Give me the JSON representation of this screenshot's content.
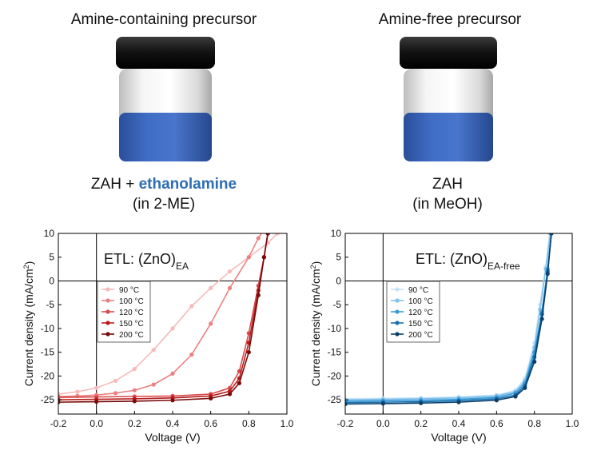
{
  "header": {
    "left_title": "Amine-containing precursor",
    "right_title": "Amine-free precursor",
    "left_formula_prefix": "ZAH + ",
    "left_formula_highlight": "ethanolamine",
    "left_solvent": "(in 2-ME)",
    "right_formula": "ZAH",
    "right_solvent": "(in MeOH)"
  },
  "colors": {
    "highlight": "#2e6db4",
    "vial_cap": "#1a1a1a",
    "vial_liquid": "#3a63b8"
  },
  "chart_data": [
    {
      "type": "line",
      "etl_base": "ETL: (ZnO)",
      "etl_sub": "EA",
      "xlabel": "Voltage (V)",
      "ylabel": "Current density (mA/cm",
      "ylabel_sup": "2",
      "ylabel_end": ")",
      "xlim": [
        -0.2,
        1.0
      ],
      "ylim": [
        -28,
        10
      ],
      "xticks": [
        "-0.2",
        "0.0",
        "0.2",
        "0.4",
        "0.6",
        "0.8",
        "1.0"
      ],
      "yticks": [
        "10",
        "5",
        "0",
        "-5",
        "-10",
        "-15",
        "-20",
        "-25"
      ],
      "legend_position": "left-middle",
      "series": [
        {
          "name": "90 °C",
          "color": "#f7b9b9",
          "x": [
            -0.2,
            -0.1,
            0.0,
            0.1,
            0.2,
            0.3,
            0.4,
            0.5,
            0.6,
            0.7,
            0.8,
            0.9,
            0.95
          ],
          "y": [
            -23.8,
            -23.3,
            -22.5,
            -21.0,
            -18.5,
            -14.5,
            -10.0,
            -5.3,
            -1.5,
            2.0,
            5.0,
            8.0,
            10.0
          ]
        },
        {
          "name": "100 °C",
          "color": "#ec8080",
          "x": [
            -0.2,
            -0.1,
            0.0,
            0.1,
            0.2,
            0.3,
            0.4,
            0.5,
            0.6,
            0.7,
            0.8,
            0.85,
            0.9
          ],
          "y": [
            -24.3,
            -24.2,
            -24.0,
            -23.6,
            -23.0,
            -21.8,
            -19.5,
            -15.5,
            -9.0,
            -1.5,
            5.0,
            9.0,
            12.0
          ]
        },
        {
          "name": "120 °C",
          "color": "#d94a4a",
          "x": [
            -0.2,
            0.0,
            0.2,
            0.4,
            0.6,
            0.7,
            0.75,
            0.8,
            0.85,
            0.88,
            0.9
          ],
          "y": [
            -24.5,
            -24.4,
            -24.3,
            -24.2,
            -23.8,
            -22.5,
            -19.0,
            -11.0,
            -1.0,
            5.0,
            10.0
          ]
        },
        {
          "name": "150 °C",
          "color": "#b71c1c",
          "x": [
            -0.2,
            0.0,
            0.2,
            0.4,
            0.6,
            0.7,
            0.75,
            0.8,
            0.85,
            0.88,
            0.9
          ],
          "y": [
            -25.0,
            -24.9,
            -24.8,
            -24.6,
            -24.2,
            -23.2,
            -20.5,
            -13.0,
            -2.0,
            5.0,
            10.0
          ]
        },
        {
          "name": "200 °C",
          "color": "#7a0a0a",
          "x": [
            -0.2,
            0.0,
            0.2,
            0.4,
            0.6,
            0.7,
            0.75,
            0.8,
            0.85,
            0.88,
            0.9
          ],
          "y": [
            -25.5,
            -25.4,
            -25.3,
            -25.1,
            -24.7,
            -23.8,
            -21.5,
            -15.0,
            -3.0,
            5.0,
            10.0
          ]
        }
      ]
    },
    {
      "type": "line",
      "etl_base": "ETL: (ZnO)",
      "etl_sub": "EA-free",
      "xlabel": "Voltage (V)",
      "ylabel": "Current density (mA/cm",
      "ylabel_sup": "2",
      "ylabel_end": ")",
      "xlim": [
        -0.2,
        1.0
      ],
      "ylim": [
        -28,
        10
      ],
      "xticks": [
        "-0.2",
        "0.0",
        "0.2",
        "0.4",
        "0.6",
        "0.8",
        "1.0"
      ],
      "yticks": [
        "10",
        "5",
        "0",
        "-5",
        "-10",
        "-15",
        "-20",
        "-25"
      ],
      "legend_position": "left-middle",
      "series": [
        {
          "name": "90 °C",
          "color": "#c6e3f7",
          "x": [
            -0.2,
            0.0,
            0.2,
            0.4,
            0.6,
            0.7,
            0.75,
            0.8,
            0.83,
            0.86,
            0.88
          ],
          "y": [
            -24.8,
            -24.7,
            -24.6,
            -24.4,
            -24.0,
            -23.0,
            -20.5,
            -13.0,
            -5.0,
            3.0,
            10.0
          ]
        },
        {
          "name": "100 °C",
          "color": "#7fc1eb",
          "x": [
            -0.2,
            0.0,
            0.2,
            0.4,
            0.6,
            0.7,
            0.75,
            0.8,
            0.83,
            0.86,
            0.885
          ],
          "y": [
            -25.0,
            -24.9,
            -24.8,
            -24.6,
            -24.2,
            -23.3,
            -21.0,
            -14.0,
            -6.0,
            2.5,
            10.0
          ]
        },
        {
          "name": "120 °C",
          "color": "#3b9bd6",
          "x": [
            -0.2,
            0.0,
            0.2,
            0.4,
            0.6,
            0.7,
            0.75,
            0.8,
            0.84,
            0.87,
            0.89
          ],
          "y": [
            -25.3,
            -25.2,
            -25.1,
            -24.9,
            -24.5,
            -23.6,
            -21.5,
            -15.0,
            -6.5,
            2.5,
            10.0
          ]
        },
        {
          "name": "150 °C",
          "color": "#156fae",
          "x": [
            -0.2,
            0.0,
            0.2,
            0.4,
            0.6,
            0.7,
            0.75,
            0.8,
            0.84,
            0.87,
            0.89
          ],
          "y": [
            -25.6,
            -25.5,
            -25.4,
            -25.2,
            -24.8,
            -24.0,
            -22.0,
            -16.0,
            -7.0,
            2.0,
            10.0
          ]
        },
        {
          "name": "200 °C",
          "color": "#0a3f6b",
          "x": [
            -0.2,
            0.0,
            0.2,
            0.4,
            0.6,
            0.7,
            0.75,
            0.8,
            0.84,
            0.87,
            0.89
          ],
          "y": [
            -25.9,
            -25.8,
            -25.7,
            -25.5,
            -25.1,
            -24.3,
            -22.5,
            -17.0,
            -8.0,
            1.5,
            10.0
          ]
        }
      ]
    }
  ]
}
